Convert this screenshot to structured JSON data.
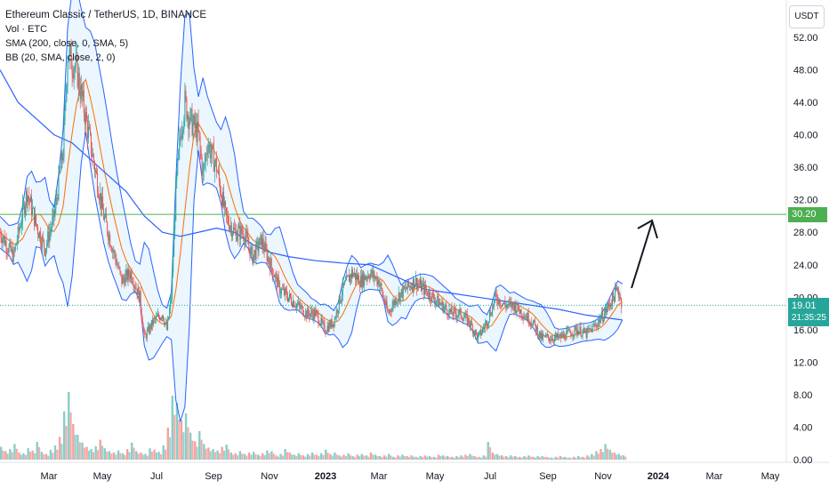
{
  "legend": {
    "title": "Ethereum Classic / TetherUS, 1D, BINANCE",
    "vol": "Vol · ETC",
    "sma": "SMA (200, close, 0, SMA, 5)",
    "bb": "BB (20, SMA, close, 2, 0)"
  },
  "unit_button": "USDT",
  "price_labels": {
    "level": "30.20",
    "last": "19.01",
    "countdown": "21:35:25"
  },
  "colors": {
    "up": "#26a69a",
    "down": "#ef5350",
    "bb": "#2962ff",
    "bb_fill": "rgba(33,150,243,0.09)",
    "sma": "#2962ff",
    "bb_basis": "#ff6d00",
    "level_line": "#4caf50",
    "last_line": "#26a69a"
  },
  "chart_data": {
    "type": "candlestick",
    "y_ticks": [
      "52.00",
      "48.00",
      "44.00",
      "40.00",
      "36.00",
      "32.00",
      "28.00",
      "24.00",
      "20.00",
      "16.00",
      "12.00",
      "8.00",
      "4.00",
      "0.00"
    ],
    "ylim": [
      0,
      57
    ],
    "x_ticks": [
      {
        "label": "Mar"
      },
      {
        "label": "May"
      },
      {
        "label": "Jul"
      },
      {
        "label": "Sep"
      },
      {
        "label": "Nov"
      },
      {
        "label": "2023",
        "bold": true
      },
      {
        "label": "Mar"
      },
      {
        "label": "May"
      },
      {
        "label": "Jul"
      },
      {
        "label": "Sep"
      },
      {
        "label": "Nov"
      },
      {
        "label": "2024",
        "bold": true
      },
      {
        "label": "Mar"
      },
      {
        "label": "May"
      }
    ],
    "horizontal_level": 30.2,
    "last_price": 19.01,
    "price_path": [
      {
        "t": 0,
        "v": 28
      },
      {
        "t": 3,
        "v": 25
      },
      {
        "t": 6,
        "v": 33
      },
      {
        "t": 8,
        "v": 29
      },
      {
        "t": 10,
        "v": 26
      },
      {
        "t": 12,
        "v": 30
      },
      {
        "t": 14,
        "v": 38
      },
      {
        "t": 15,
        "v": 50
      },
      {
        "t": 17,
        "v": 48
      },
      {
        "t": 19,
        "v": 42
      },
      {
        "t": 21,
        "v": 36
      },
      {
        "t": 23,
        "v": 30
      },
      {
        "t": 25,
        "v": 26
      },
      {
        "t": 27,
        "v": 22
      },
      {
        "t": 29,
        "v": 23
      },
      {
        "t": 31,
        "v": 20
      },
      {
        "t": 32,
        "v": 15
      },
      {
        "t": 34,
        "v": 17
      },
      {
        "t": 36,
        "v": 18
      },
      {
        "t": 37,
        "v": 16
      },
      {
        "t": 38,
        "v": 20
      },
      {
        "t": 39,
        "v": 33
      },
      {
        "t": 40,
        "v": 40
      },
      {
        "t": 41,
        "v": 44
      },
      {
        "t": 42,
        "v": 42
      },
      {
        "t": 44,
        "v": 40
      },
      {
        "t": 45,
        "v": 35
      },
      {
        "t": 46,
        "v": 39
      },
      {
        "t": 48,
        "v": 36
      },
      {
        "t": 50,
        "v": 30
      },
      {
        "t": 52,
        "v": 28
      },
      {
        "t": 54,
        "v": 28
      },
      {
        "t": 56,
        "v": 25
      },
      {
        "t": 58,
        "v": 27
      },
      {
        "t": 60,
        "v": 24
      },
      {
        "t": 62,
        "v": 21
      },
      {
        "t": 64,
        "v": 20
      },
      {
        "t": 66,
        "v": 19
      },
      {
        "t": 68,
        "v": 18
      },
      {
        "t": 70,
        "v": 18
      },
      {
        "t": 72,
        "v": 16
      },
      {
        "t": 74,
        "v": 17
      },
      {
        "t": 76,
        "v": 21
      },
      {
        "t": 78,
        "v": 23
      },
      {
        "t": 80,
        "v": 22
      },
      {
        "t": 82,
        "v": 23
      },
      {
        "t": 84,
        "v": 22
      },
      {
        "t": 86,
        "v": 18
      },
      {
        "t": 88,
        "v": 20
      },
      {
        "t": 90,
        "v": 21
      },
      {
        "t": 92,
        "v": 22
      },
      {
        "t": 94,
        "v": 21
      },
      {
        "t": 96,
        "v": 20
      },
      {
        "t": 98,
        "v": 19
      },
      {
        "t": 100,
        "v": 18
      },
      {
        "t": 102,
        "v": 18
      },
      {
        "t": 104,
        "v": 17
      },
      {
        "t": 106,
        "v": 15
      },
      {
        "t": 108,
        "v": 17
      },
      {
        "t": 110,
        "v": 20
      },
      {
        "t": 112,
        "v": 19
      },
      {
        "t": 114,
        "v": 19
      },
      {
        "t": 116,
        "v": 18
      },
      {
        "t": 118,
        "v": 17
      },
      {
        "t": 120,
        "v": 15
      },
      {
        "t": 122,
        "v": 15
      },
      {
        "t": 124,
        "v": 15
      },
      {
        "t": 126,
        "v": 15.5
      },
      {
        "t": 128,
        "v": 16
      },
      {
        "t": 130,
        "v": 15.5
      },
      {
        "t": 132,
        "v": 16.5
      },
      {
        "t": 134,
        "v": 18
      },
      {
        "t": 136,
        "v": 20
      },
      {
        "t": 137,
        "v": 21
      },
      {
        "t": 138,
        "v": 19
      }
    ],
    "sma200": [
      {
        "t": 0,
        "v": 48
      },
      {
        "t": 4,
        "v": 44
      },
      {
        "t": 8,
        "v": 42
      },
      {
        "t": 12,
        "v": 40
      },
      {
        "t": 16,
        "v": 39
      },
      {
        "t": 20,
        "v": 37
      },
      {
        "t": 24,
        "v": 35
      },
      {
        "t": 28,
        "v": 33
      },
      {
        "t": 32,
        "v": 30
      },
      {
        "t": 36,
        "v": 28
      },
      {
        "t": 40,
        "v": 27.5
      },
      {
        "t": 44,
        "v": 28
      },
      {
        "t": 48,
        "v": 28.5
      },
      {
        "t": 52,
        "v": 28
      },
      {
        "t": 56,
        "v": 26.5
      },
      {
        "t": 60,
        "v": 25.5
      },
      {
        "t": 64,
        "v": 25
      },
      {
        "t": 70,
        "v": 24.5
      },
      {
        "t": 76,
        "v": 24.2
      },
      {
        "t": 82,
        "v": 24
      },
      {
        "t": 86,
        "v": 23
      },
      {
        "t": 90,
        "v": 22
      },
      {
        "t": 94,
        "v": 21
      },
      {
        "t": 100,
        "v": 20.5
      },
      {
        "t": 106,
        "v": 20
      },
      {
        "t": 112,
        "v": 19.5
      },
      {
        "t": 118,
        "v": 19
      },
      {
        "t": 124,
        "v": 18.5
      },
      {
        "t": 130,
        "v": 17.8
      },
      {
        "t": 138,
        "v": 17.2
      }
    ],
    "volume": [
      1.8,
      1.2,
      1.5,
      2.2,
      1.0,
      0.9,
      1.6,
      1.3,
      2.5,
      1.1,
      0.8,
      1.4,
      2.0,
      3.2,
      6.8,
      9.5,
      5.0,
      3.5,
      2.4,
      1.8,
      1.5,
      1.9,
      2.8,
      1.6,
      1.2,
      1.0,
      1.3,
      0.9,
      1.5,
      2.4,
      1.2,
      1.0,
      0.8,
      1.6,
      1.4,
      1.1,
      2.0,
      4.5,
      9.0,
      8.0,
      5.5,
      6.5,
      3.8,
      2.6,
      4.0,
      2.2,
      1.7,
      1.5,
      1.3,
      1.8,
      2.1,
      1.0,
      0.9,
      1.2,
      0.8,
      1.0,
      1.1,
      0.7,
      0.9,
      1.3,
      1.2,
      0.6,
      0.8,
      1.5,
      1.0,
      0.7,
      0.9,
      0.6,
      0.8,
      1.0,
      0.7,
      0.9,
      1.4,
      0.8,
      1.0,
      0.6,
      0.7,
      0.9,
      0.5,
      0.7,
      0.8,
      0.6,
      1.0,
      0.7,
      0.5,
      0.6,
      0.8,
      0.4,
      0.6,
      0.7,
      0.5,
      0.6,
      0.4,
      0.5,
      0.6,
      0.5,
      0.4,
      0.7,
      0.6,
      0.5,
      0.4,
      0.5,
      0.6,
      0.7,
      0.8,
      0.5,
      0.4,
      0.6,
      2.5,
      1.0,
      0.8,
      0.6,
      0.5,
      0.6,
      0.5,
      0.4,
      0.5,
      0.6,
      0.4,
      0.5,
      0.5,
      0.4,
      0.3,
      0.4,
      0.5,
      0.4,
      0.3,
      0.4,
      0.5,
      0.4,
      0.6,
      0.8,
      1.2,
      1.5,
      2.2,
      1.4,
      1.0,
      0.8,
      0.6
    ]
  }
}
